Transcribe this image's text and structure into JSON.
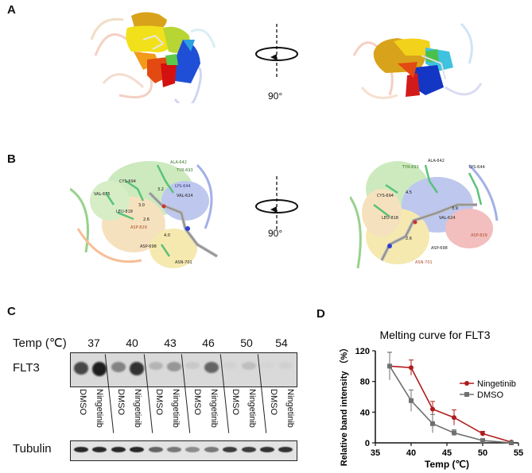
{
  "panels": {
    "a": "A",
    "b": "B",
    "c": "C",
    "d": "D"
  },
  "rotation": {
    "angle_label": "90°"
  },
  "residues_b_left": [
    "ALA-642",
    "TYR-693",
    "CYS-694",
    "LYS-644",
    "VAL-624",
    "VAL-675",
    "LEU-818",
    "ASP-829",
    "ASP-698",
    "ASN-701"
  ],
  "distances_b_left": [
    "3.2",
    "3.0",
    "2.6",
    "4.0"
  ],
  "residues_b_right": [
    "TYR-693",
    "ALA-642",
    "LYS-644",
    "CYS-694",
    "LEU-818",
    "VAL-624",
    "ASP-829",
    "ASP-698",
    "ASN-701"
  ],
  "distances_b_right": [
    "4.5",
    "3.9",
    "2.6"
  ],
  "blot": {
    "temp_header": "Temp (℃)",
    "temps": [
      "37",
      "40",
      "43",
      "46",
      "50",
      "54"
    ],
    "lanes": [
      "DMSO",
      "Ningetinib",
      "DMSO",
      "Ningetinib",
      "DMSO",
      "Ningetinib",
      "DMSO",
      "Ningetinib",
      "DMSO",
      "Ningetinib",
      "DMSO",
      "Ningetinib"
    ],
    "row_top": "FLT3",
    "row_bottom": "Tubulin"
  },
  "chart_data": {
    "type": "line",
    "title": "Melting curve for FLT3",
    "xlabel": "Temp (℃)",
    "ylabel": "Relative band intensity （%）",
    "xlim": [
      35,
      55
    ],
    "ylim": [
      0,
      120
    ],
    "xticks": [
      35,
      40,
      45,
      50,
      55
    ],
    "yticks": [
      0,
      40,
      80,
      120
    ],
    "grid": false,
    "legend_position": "right",
    "series": [
      {
        "name": "Ningetinib",
        "color": "#b01c1c",
        "marker": "circle",
        "x": [
          37,
          40,
          43,
          46,
          50,
          54
        ],
        "y": [
          100,
          98,
          44,
          33,
          12,
          1
        ],
        "err": [
          18,
          10,
          10,
          10,
          3,
          1
        ]
      },
      {
        "name": "DMSO",
        "color": "#707070",
        "marker": "square",
        "x": [
          37,
          40,
          43,
          46,
          50,
          54
        ],
        "y": [
          100,
          55,
          25,
          13,
          3,
          0
        ],
        "err": [
          18,
          14,
          12,
          4,
          2,
          1
        ]
      }
    ]
  }
}
